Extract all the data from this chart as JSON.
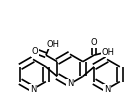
{
  "bg_color": "#ffffff",
  "line_color": "#000000",
  "bond_lw": 1.2,
  "font_size": 6.0,
  "xlim": [
    0.0,
    1.0
  ],
  "ylim": [
    0.0,
    1.0
  ]
}
